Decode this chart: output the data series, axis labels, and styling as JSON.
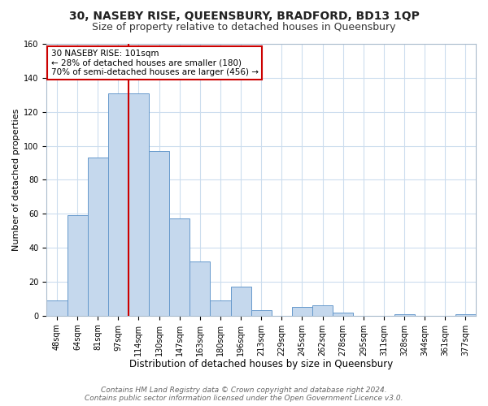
{
  "title": "30, NASEBY RISE, QUEENSBURY, BRADFORD, BD13 1QP",
  "subtitle": "Size of property relative to detached houses in Queensbury",
  "xlabel": "Distribution of detached houses by size in Queensbury",
  "ylabel": "Number of detached properties",
  "bar_labels": [
    "48sqm",
    "64sqm",
    "81sqm",
    "97sqm",
    "114sqm",
    "130sqm",
    "147sqm",
    "163sqm",
    "180sqm",
    "196sqm",
    "213sqm",
    "229sqm",
    "245sqm",
    "262sqm",
    "278sqm",
    "295sqm",
    "311sqm",
    "328sqm",
    "344sqm",
    "361sqm",
    "377sqm"
  ],
  "bar_values": [
    9,
    59,
    93,
    131,
    131,
    97,
    57,
    32,
    9,
    17,
    3,
    0,
    5,
    6,
    2,
    0,
    0,
    1,
    0,
    0,
    1
  ],
  "bar_color": "#c5d8ed",
  "bar_edge_color": "#6699cc",
  "ylim": [
    0,
    160
  ],
  "yticks": [
    0,
    20,
    40,
    60,
    80,
    100,
    120,
    140,
    160
  ],
  "vline_x": 3.5,
  "vline_color": "#cc0000",
  "annotation_text": "30 NASEBY RISE: 101sqm\n← 28% of detached houses are smaller (180)\n70% of semi-detached houses are larger (456) →",
  "annotation_box_color": "#ffffff",
  "annotation_box_edge": "#cc0000",
  "footer_line1": "Contains HM Land Registry data © Crown copyright and database right 2024.",
  "footer_line2": "Contains public sector information licensed under the Open Government Licence v3.0.",
  "fig_background": "#ffffff",
  "plot_background": "#ffffff",
  "grid_color": "#ccddee",
  "title_fontsize": 10,
  "subtitle_fontsize": 9,
  "xlabel_fontsize": 8.5,
  "ylabel_fontsize": 8,
  "tick_fontsize": 7,
  "footer_fontsize": 6.5
}
